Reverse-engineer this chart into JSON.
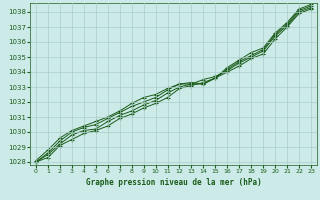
{
  "title": "Graphe pression niveau de la mer (hPa)",
  "background_color": "#cceae7",
  "plot_bg_color": "#cceae7",
  "grid_color": "#aaccc8",
  "line_color": "#1a5c1a",
  "marker_color": "#1a5c1a",
  "xlim": [
    -0.5,
    23.5
  ],
  "ylim": [
    1027.8,
    1038.6
  ],
  "yticks": [
    1028,
    1029,
    1030,
    1031,
    1032,
    1033,
    1034,
    1035,
    1036,
    1037,
    1038
  ],
  "xticks": [
    0,
    1,
    2,
    3,
    4,
    5,
    6,
    7,
    8,
    9,
    10,
    11,
    12,
    13,
    14,
    15,
    16,
    17,
    18,
    19,
    20,
    21,
    22,
    23
  ],
  "series": [
    [
      1028.0,
      1028.3,
      1029.1,
      1029.5,
      1029.9,
      1030.1,
      1030.4,
      1030.9,
      1031.2,
      1031.6,
      1031.9,
      1032.3,
      1032.9,
      1033.1,
      1033.3,
      1033.6,
      1034.0,
      1034.4,
      1034.9,
      1035.2,
      1036.2,
      1037.0,
      1037.9,
      1038.2
    ],
    [
      1028.0,
      1028.5,
      1029.2,
      1029.8,
      1030.1,
      1030.2,
      1030.7,
      1031.1,
      1031.4,
      1031.8,
      1032.1,
      1032.6,
      1033.0,
      1033.2,
      1033.5,
      1033.7,
      1034.1,
      1034.6,
      1035.0,
      1035.4,
      1036.4,
      1037.1,
      1038.0,
      1038.3
    ],
    [
      1028.0,
      1028.6,
      1029.4,
      1030.0,
      1030.3,
      1030.5,
      1030.9,
      1031.3,
      1031.7,
      1032.0,
      1032.3,
      1032.8,
      1033.2,
      1033.2,
      1033.2,
      1033.6,
      1034.2,
      1034.7,
      1035.1,
      1035.5,
      1036.5,
      1037.2,
      1038.1,
      1038.4
    ],
    [
      1028.1,
      1028.8,
      1029.6,
      1030.1,
      1030.4,
      1030.7,
      1031.0,
      1031.4,
      1031.9,
      1032.3,
      1032.5,
      1032.9,
      1033.2,
      1033.3,
      1033.2,
      1033.6,
      1034.3,
      1034.8,
      1035.3,
      1035.6,
      1036.6,
      1037.3,
      1038.2,
      1038.5
    ]
  ]
}
